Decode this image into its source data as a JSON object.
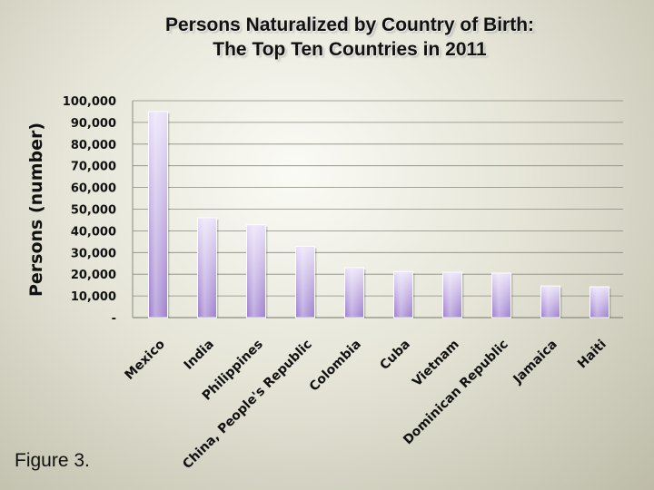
{
  "title_line1": "Persons Naturalized by Country of Birth:",
  "title_line2": "The Top Ten Countries in 2011",
  "figure_label": "Figure 3.",
  "colors": {
    "bar_light": "#e9e0f8",
    "bar_dark": "#9f82cf",
    "grid": "#8a8a80",
    "axis_text": "#111111"
  },
  "chart_data": {
    "type": "bar",
    "title": "Persons Naturalized by Country of Birth: The Top Ten Countries in 2011",
    "xlabel": "",
    "ylabel": "Persons (number)",
    "ylim": [
      0,
      100000
    ],
    "grid": true,
    "legend": "none",
    "yticks": [
      "-",
      "10,000",
      "20,000",
      "30,000",
      "40,000",
      "50,000",
      "60,000",
      "70,000",
      "80,000",
      "90,000",
      "100,000"
    ],
    "categories": [
      "Mexico",
      "India",
      "Philippines",
      "China, People's Republic",
      "Colombia",
      "Cuba",
      "Vietnam",
      "Dominican Republic",
      "Jamaica",
      "Haiti"
    ],
    "values": [
      95000,
      46000,
      42800,
      32900,
      23000,
      21200,
      20900,
      20500,
      14600,
      14200
    ]
  }
}
